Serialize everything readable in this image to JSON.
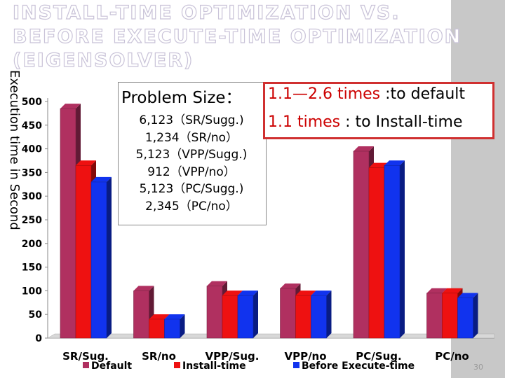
{
  "title": {
    "line1": "Install-time Optimization vs.",
    "line2": "Before Execute-time Optimization",
    "line3": "(Eigensolver)"
  },
  "info": {
    "heading": "Problem Size：",
    "items": [
      "6,123（SR/Sugg.)",
      "1,234（SR/no）",
      "5,123（VPP/Sugg.)",
      "912（VPP/no）",
      "5,123（PC/Sugg.)",
      "2,345（PC/no）"
    ]
  },
  "ratio": {
    "line1_value": "1.1—2.6 times",
    "line1_suffix": " :to default",
    "line2_value": "1.1 times",
    "line2_suffix": " : to Install-time"
  },
  "page_number": "30",
  "colors": {
    "default": "#b03060",
    "install": "#ee1111",
    "before": "#1133ee"
  },
  "chart_data": {
    "type": "bar",
    "title": "",
    "xlabel": "",
    "ylabel": "Execution time in Second",
    "ylim": [
      0,
      500
    ],
    "yticks": [
      "0",
      "50",
      "100",
      "150",
      "200",
      "250",
      "300",
      "350",
      "400",
      "450",
      "500"
    ],
    "categories": [
      "SR/Sug.",
      "SR/no",
      "VPP/Sug.",
      "VPP/no",
      "PC/Sug.",
      "PC/no"
    ],
    "series": [
      {
        "name": "Default",
        "values": [
          485,
          100,
          110,
          105,
          395,
          95
        ]
      },
      {
        "name": "Install-time",
        "values": [
          365,
          40,
          90,
          90,
          360,
          95
        ]
      },
      {
        "name": "Before Execute-time",
        "values": [
          330,
          40,
          90,
          90,
          365,
          85
        ]
      }
    ]
  }
}
